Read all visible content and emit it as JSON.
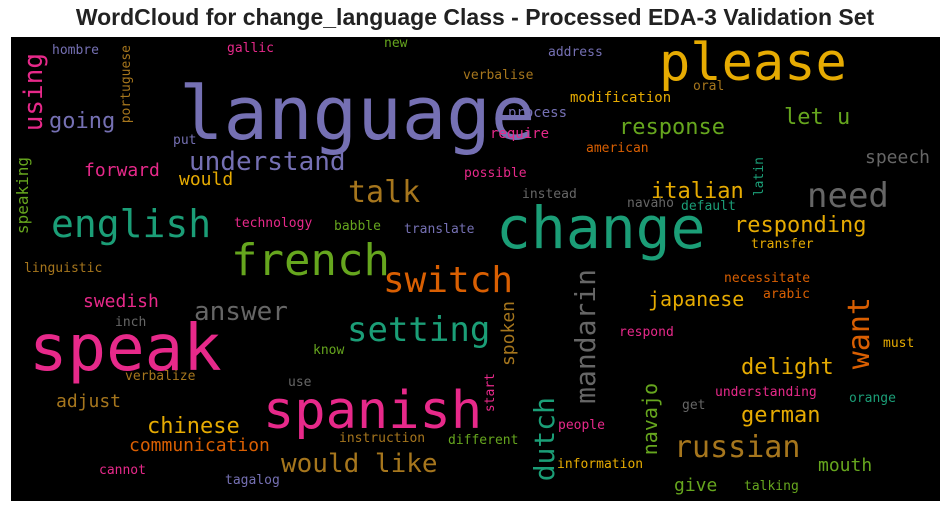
{
  "title": "WordCloud for change_language Class - Processed EDA-3 Validation Set",
  "words": [
    {
      "text": "language",
      "color": "#7570b3"
    },
    {
      "text": "speak",
      "color": "#e7298a"
    },
    {
      "text": "change",
      "color": "#1b9e77"
    },
    {
      "text": "spanish",
      "color": "#e7298a"
    },
    {
      "text": "please",
      "color": "#e6ab02"
    },
    {
      "text": "french",
      "color": "#66a61e"
    },
    {
      "text": "english",
      "color": "#1b9e77"
    },
    {
      "text": "switch",
      "color": "#d95f02"
    },
    {
      "text": "setting",
      "color": "#1b9e77"
    },
    {
      "text": "need",
      "color": "#666666"
    },
    {
      "text": "talk",
      "color": "#a6761d"
    },
    {
      "text": "understand",
      "color": "#7570b3"
    },
    {
      "text": "russian",
      "color": "#a6761d"
    },
    {
      "text": "would like",
      "color": "#a6761d"
    },
    {
      "text": "answer",
      "color": "#666666"
    },
    {
      "text": "mandarin",
      "color": "#666666"
    },
    {
      "text": "dutch",
      "color": "#1b9e77"
    },
    {
      "text": "want",
      "color": "#d95f02"
    },
    {
      "text": "using",
      "color": "#e7298a"
    },
    {
      "text": "going",
      "color": "#7570b3"
    },
    {
      "text": "response",
      "color": "#66a61e"
    },
    {
      "text": "let u",
      "color": "#66a61e"
    },
    {
      "text": "italian",
      "color": "#e6ab02"
    },
    {
      "text": "responding",
      "color": "#e6ab02"
    },
    {
      "text": "japanese",
      "color": "#e6ab02"
    },
    {
      "text": "delight",
      "color": "#e6ab02"
    },
    {
      "text": "german",
      "color": "#e6ab02"
    },
    {
      "text": "chinese",
      "color": "#e6ab02"
    },
    {
      "text": "navajo",
      "color": "#66a61e"
    },
    {
      "text": "communication",
      "color": "#d95f02"
    },
    {
      "text": "forward",
      "color": "#e7298a"
    },
    {
      "text": "would",
      "color": "#e6ab02"
    },
    {
      "text": "speech",
      "color": "#666666"
    },
    {
      "text": "swedish",
      "color": "#e7298a"
    },
    {
      "text": "spoken",
      "color": "#a6761d"
    },
    {
      "text": "mouth",
      "color": "#66a61e"
    },
    {
      "text": "give",
      "color": "#66a61e"
    },
    {
      "text": "adjust",
      "color": "#a6761d"
    },
    {
      "text": "speaking",
      "color": "#66a61e"
    },
    {
      "text": "portuguese",
      "color": "#a6761d"
    },
    {
      "text": "hombre",
      "color": "#7570b3"
    },
    {
      "text": "gallic",
      "color": "#e7298a"
    },
    {
      "text": "new",
      "color": "#66a61e"
    },
    {
      "text": "address",
      "color": "#7570b3"
    },
    {
      "text": "verbalise",
      "color": "#a6761d"
    },
    {
      "text": "oral",
      "color": "#a6761d"
    },
    {
      "text": "modification",
      "color": "#e6ab02"
    },
    {
      "text": "process",
      "color": "#7570b3"
    },
    {
      "text": "require",
      "color": "#e7298a"
    },
    {
      "text": "put",
      "color": "#7570b3"
    },
    {
      "text": "american",
      "color": "#d95f02"
    },
    {
      "text": "possible",
      "color": "#e7298a"
    },
    {
      "text": "latin",
      "color": "#1b9e77"
    },
    {
      "text": "instead",
      "color": "#666666"
    },
    {
      "text": "navaho",
      "color": "#666666"
    },
    {
      "text": "default",
      "color": "#1b9e77"
    },
    {
      "text": "technology",
      "color": "#e7298a"
    },
    {
      "text": "babble",
      "color": "#66a61e"
    },
    {
      "text": "translate",
      "color": "#7570b3"
    },
    {
      "text": "transfer",
      "color": "#e6ab02"
    },
    {
      "text": "linguistic",
      "color": "#a6761d"
    },
    {
      "text": "necessitate",
      "color": "#d95f02"
    },
    {
      "text": "arabic",
      "color": "#d95f02"
    },
    {
      "text": "inch",
      "color": "#666666"
    },
    {
      "text": "know",
      "color": "#66a61e"
    },
    {
      "text": "respond",
      "color": "#e7298a"
    },
    {
      "text": "must",
      "color": "#e6ab02"
    },
    {
      "text": "verbalize",
      "color": "#a6761d"
    },
    {
      "text": "use",
      "color": "#666666"
    },
    {
      "text": "start",
      "color": "#e7298a"
    },
    {
      "text": "understanding",
      "color": "#e7298a"
    },
    {
      "text": "get",
      "color": "#666666"
    },
    {
      "text": "orange",
      "color": "#1b9e77"
    },
    {
      "text": "instruction",
      "color": "#a6761d"
    },
    {
      "text": "people",
      "color": "#e7298a"
    },
    {
      "text": "different",
      "color": "#66a61e"
    },
    {
      "text": "cannot",
      "color": "#e7298a"
    },
    {
      "text": "tagalog",
      "color": "#7570b3"
    },
    {
      "text": "information",
      "color": "#e6ab02"
    },
    {
      "text": "talking",
      "color": "#66a61e"
    }
  ]
}
